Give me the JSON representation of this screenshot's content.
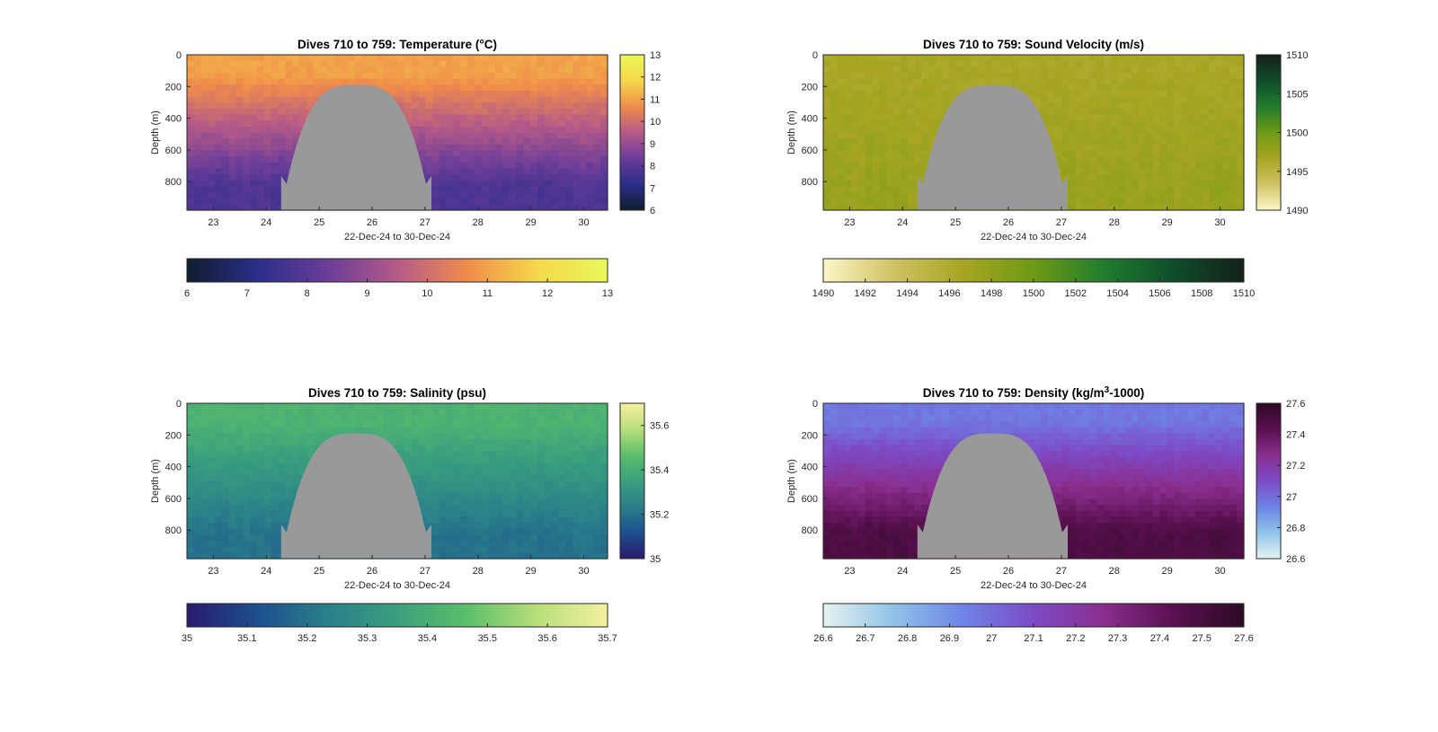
{
  "chart_data": [
    {
      "type": "heatmap",
      "title": "Dives 710 to 759: Temperature",
      "unit": "(°C)",
      "xlabel": "22-Dec-24 to 30-Dec-24",
      "ylabel": "Depth (m)",
      "xlim": [
        22.5,
        30.45
      ],
      "ylim": [
        980,
        0
      ],
      "xticks": [
        "23",
        "24",
        "25",
        "26",
        "27",
        "28",
        "29",
        "30"
      ],
      "yticks": [
        "0",
        "200",
        "400",
        "600",
        "800"
      ],
      "clim": [
        6,
        13
      ],
      "cbar_ticks": [
        "6",
        "7",
        "8",
        "9",
        "10",
        "11",
        "12",
        "13"
      ],
      "colormap": [
        "#0f1d2e",
        "#2b2d8a",
        "#6a3d99",
        "#b55a88",
        "#f08c4a",
        "#f5d84a",
        "#e8f85a"
      ],
      "surface_value": 11.0,
      "bottom_value": 7.8,
      "gap_color": "#999999",
      "gap_start_day": 24.28,
      "gap_end_day": 27.12,
      "gap_top_depth_m": 190,
      "grid": false,
      "legend": "colorbar right and below"
    },
    {
      "type": "heatmap",
      "title": "Dives 710 to 759: Sound Velocity (m/s)",
      "unit": "",
      "xlabel": "22-Dec-24 to 30-Dec-24",
      "ylabel": "Depth (m)",
      "xlim": [
        22.5,
        30.45
      ],
      "ylim": [
        980,
        0
      ],
      "xticks": [
        "23",
        "24",
        "25",
        "26",
        "27",
        "28",
        "29",
        "30"
      ],
      "yticks": [
        "0",
        "200",
        "400",
        "600",
        "800"
      ],
      "clim": [
        1490,
        1510
      ],
      "cbar_ticks": [
        "1490",
        "1495",
        "1500",
        "1505",
        "1510"
      ],
      "cbar_ticks_h": [
        "1490",
        "1492",
        "1494",
        "1496",
        "1498",
        "1500",
        "1502",
        "1504",
        "1506",
        "1508",
        "1510"
      ],
      "colormap": [
        "#fdf7c8",
        "#cfc263",
        "#a7a523",
        "#6e9a14",
        "#207d2d",
        "#0f4d2c",
        "#142018"
      ],
      "surface_value": 1496.5,
      "bottom_value": 1497.5,
      "gap_color": "#999999",
      "gap_start_day": 24.28,
      "gap_end_day": 27.12,
      "gap_top_depth_m": 190,
      "grid": false,
      "legend": "colorbar right and below"
    },
    {
      "type": "heatmap",
      "title": "Dives 710 to 759: Salinity (psu)",
      "unit": "",
      "xlabel": "22-Dec-24 to 30-Dec-24",
      "ylabel": "Depth (m)",
      "xlim": [
        22.5,
        30.45
      ],
      "ylim": [
        980,
        0
      ],
      "xticks": [
        "23",
        "24",
        "25",
        "26",
        "27",
        "28",
        "29",
        "30"
      ],
      "yticks": [
        "0",
        "200",
        "400",
        "600",
        "800"
      ],
      "clim": [
        35,
        35.7
      ],
      "cbar_ticks": [
        "35",
        "35.2",
        "35.4",
        "35.6"
      ],
      "cbar_ticks_h": [
        "35",
        "35.1",
        "35.2",
        "35.3",
        "35.4",
        "35.5",
        "35.6",
        "35.7"
      ],
      "colormap": [
        "#2a1a6e",
        "#1c4f8e",
        "#2a7f8a",
        "#3a9f7e",
        "#5cbf6a",
        "#b8df7a",
        "#f5f0a0"
      ],
      "surface_value": 35.42,
      "bottom_value": 35.2,
      "gap_color": "#999999",
      "gap_start_day": 24.28,
      "gap_end_day": 27.12,
      "gap_top_depth_m": 190,
      "grid": false,
      "legend": "colorbar right and below"
    },
    {
      "type": "heatmap",
      "title": "Dives 710 to 759: Density (kg/m",
      "title_sup": "3",
      "title_tail": "-1000)",
      "unit": "",
      "xlabel": "22-Dec-24 to 30-Dec-24",
      "ylabel": "Depth (m)",
      "xlim": [
        22.5,
        30.45
      ],
      "ylim": [
        980,
        0
      ],
      "xticks": [
        "23",
        "24",
        "25",
        "26",
        "27",
        "28",
        "29",
        "30"
      ],
      "yticks": [
        "0",
        "200",
        "400",
        "600",
        "800"
      ],
      "clim": [
        26.6,
        27.6
      ],
      "cbar_ticks": [
        "26.6",
        "26.8",
        "27",
        "27.2",
        "27.4",
        "27.6"
      ],
      "cbar_ticks_h": [
        "26.6",
        "26.7",
        "26.8",
        "26.9",
        "27",
        "27.1",
        "27.2",
        "27.3",
        "27.4",
        "27.5",
        "27.6"
      ],
      "colormap": [
        "#e6f2f2",
        "#8fc3e8",
        "#6e84e6",
        "#7d4bc6",
        "#8a2e8e",
        "#5a1050",
        "#2c0a24"
      ],
      "surface_value": 26.97,
      "bottom_value": 27.48,
      "gap_color": "#999999",
      "gap_start_day": 24.28,
      "gap_end_day": 27.12,
      "gap_top_depth_m": 190,
      "grid": false,
      "legend": "colorbar right and below"
    }
  ]
}
